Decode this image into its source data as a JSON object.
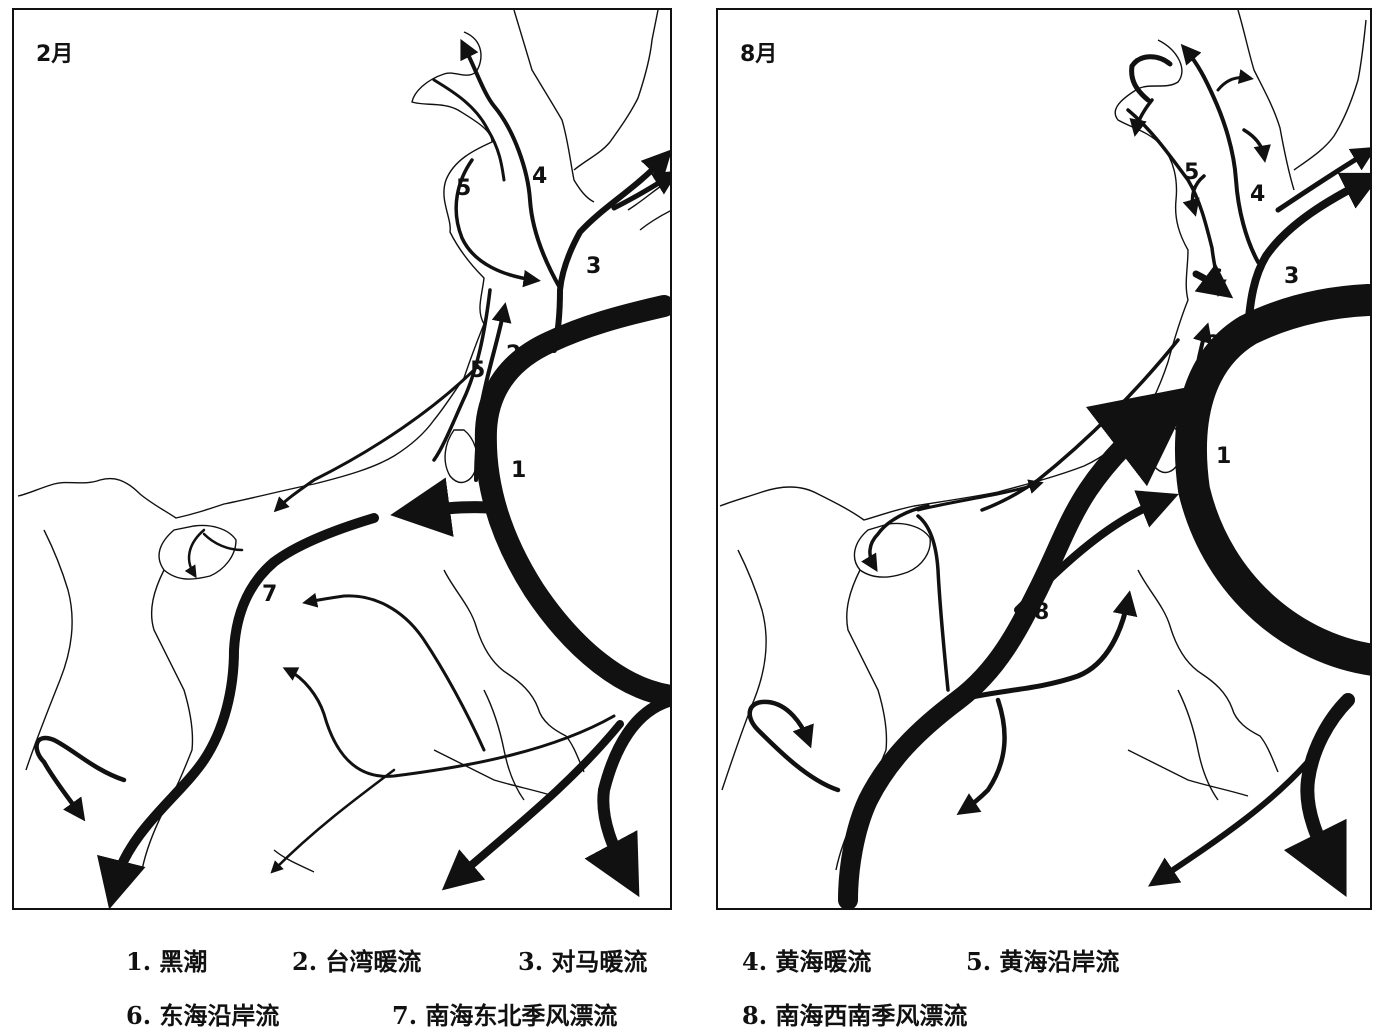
{
  "panels": {
    "feb": {
      "month": "2月"
    },
    "aug": {
      "month": "8月"
    }
  },
  "current_labels": {
    "feb": {
      "c1": "1",
      "c2": "2",
      "c3": "3",
      "c4": "4",
      "c5a": "5",
      "c5b": "5",
      "c7": "7"
    },
    "aug": {
      "c1": "1",
      "c2": "2",
      "c3": "3",
      "c4": "4",
      "c5": "5",
      "c6": "6",
      "c8": "8"
    }
  },
  "legend": [
    "1. 黑潮",
    "2. 台湾暖流",
    "3. 对马暖流",
    "4. 黄海暖流",
    "5. 黄海沿岸流",
    "6. 东海沿岸流",
    "7. 南海东北季风漂流",
    "8. 南海西南季风漂流"
  ],
  "colors": {
    "ink": "#111111",
    "background": "#ffffff"
  }
}
